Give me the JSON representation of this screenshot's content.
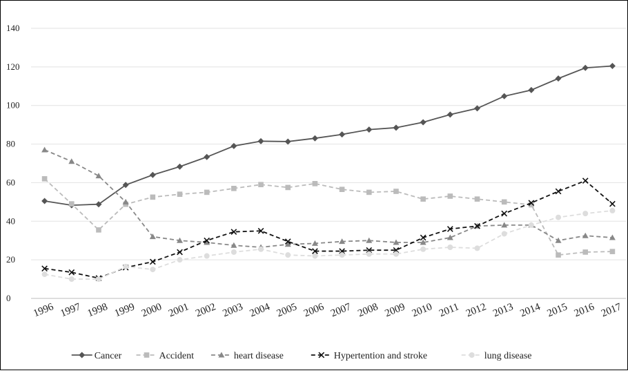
{
  "chart_data": {
    "type": "line",
    "title": "",
    "xlabel": "",
    "ylabel": "",
    "ylim": [
      0,
      140
    ],
    "yticks": [
      0,
      20,
      40,
      60,
      80,
      100,
      120,
      140
    ],
    "grid": true,
    "legend_position": "bottom",
    "categories": [
      "1996",
      "1997",
      "1998",
      "1999",
      "2000",
      "2001",
      "2002",
      "2003",
      "2004",
      "2005",
      "2006",
      "2007",
      "2008",
      "2009",
      "2010",
      "2011",
      "2012",
      "2013",
      "2014",
      "2015",
      "2016",
      "2017"
    ],
    "series": [
      {
        "name": "Cancer",
        "color": "#555555",
        "dash": "solid",
        "marker": "diamond",
        "values": [
          50.5,
          48.3,
          48.8,
          58.8,
          64.0,
          68.3,
          73.3,
          79.0,
          81.5,
          81.3,
          83.0,
          85.0,
          87.5,
          88.5,
          91.3,
          95.3,
          98.5,
          104.8,
          108.0,
          114.0,
          119.5,
          120.5
        ]
      },
      {
        "name": "Accident",
        "color": "#bbbbbb",
        "dash": "dashed",
        "marker": "square",
        "values": [
          62.0,
          49.0,
          35.5,
          48.8,
          52.5,
          54.0,
          55.0,
          57.0,
          59.0,
          57.5,
          59.5,
          56.5,
          55.0,
          55.5,
          51.5,
          53.0,
          51.5,
          50.0,
          48.5,
          22.5,
          24.0,
          24.3
        ]
      },
      {
        "name": "heart disease",
        "color": "#888888",
        "dash": "dashed",
        "marker": "triangle",
        "values": [
          77.0,
          71.0,
          63.5,
          50.0,
          32.0,
          30.0,
          29.0,
          27.5,
          26.5,
          28.0,
          28.5,
          29.5,
          30.0,
          29.0,
          29.0,
          31.5,
          37.5,
          38.0,
          38.0,
          30.0,
          32.5,
          31.5
        ]
      },
      {
        "name": "Hypertention and stroke",
        "color": "#111111",
        "dash": "dashed",
        "marker": "x",
        "values": [
          15.5,
          13.5,
          10.5,
          16.0,
          19.0,
          24.0,
          30.0,
          34.5,
          35.0,
          29.5,
          24.5,
          24.5,
          25.0,
          25.0,
          31.5,
          36.0,
          37.5,
          44.0,
          49.5,
          55.5,
          61.0,
          49.0
        ]
      },
      {
        "name": "lung disease",
        "color": "#dddddd",
        "dash": "dashed",
        "marker": "circle",
        "values": [
          12.5,
          10.0,
          10.0,
          16.5,
          15.0,
          20.0,
          22.0,
          24.0,
          25.5,
          22.5,
          22.0,
          22.5,
          23.0,
          23.0,
          25.5,
          26.5,
          26.0,
          33.5,
          38.0,
          42.0,
          44.0,
          45.5
        ]
      }
    ]
  }
}
